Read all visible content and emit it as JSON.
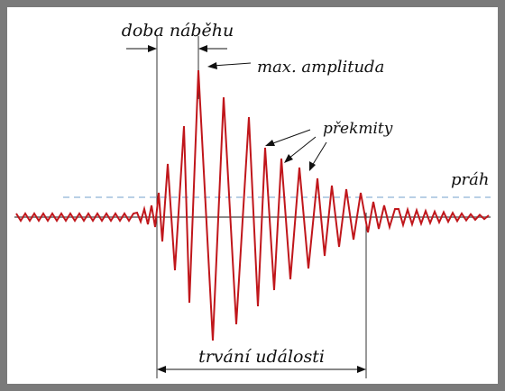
{
  "labels": {
    "rise_time": "doba náběhu",
    "max_amplitude": "max. amplituda",
    "overshoots": "překmity",
    "threshold": "práh",
    "event_duration": "trvání události"
  },
  "colors": {
    "frame": "#7a7a7a",
    "baseline": "#8a8a8a",
    "signal": "#c0161b",
    "threshold": "#8fb4d6",
    "annotation": "#111111"
  }
}
